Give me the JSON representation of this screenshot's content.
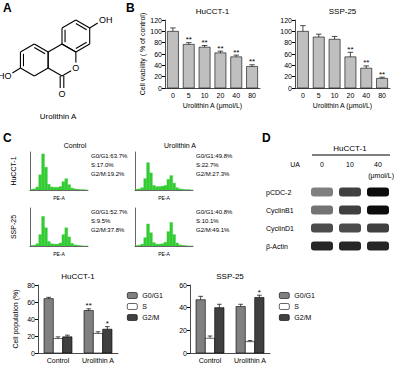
{
  "figure": {
    "panel_letters": [
      "A",
      "B",
      "C",
      "D"
    ],
    "structure": {
      "name": "Urolithin A",
      "atoms": {
        "hydroxyl_top": "OH",
        "hydroxyl_left": "HO",
        "ring_oxygen": "O",
        "carbonyl_oxygen": "O"
      }
    },
    "cell_cycle": {
      "columns": [
        "Control",
        "Urolithin A"
      ],
      "rows": [
        "HuCCT-1",
        "SSP-25"
      ]
    },
    "blot": {
      "cell_line": "HuCCT-1",
      "treatment": "UA",
      "doses": [
        "0",
        "10",
        "40"
      ],
      "unit": "(μmol/L)",
      "rows": [
        {
          "label": "pCDC-2",
          "intensity": [
            0.5,
            0.75,
            0.95
          ]
        },
        {
          "label": "CyclinB1",
          "intensity": [
            0.55,
            0.75,
            0.95
          ]
        },
        {
          "label": "CyclinD1",
          "intensity": [
            0.7,
            0.7,
            0.75
          ]
        },
        {
          "label": "β-Actin",
          "intensity": [
            0.85,
            0.85,
            0.85
          ]
        }
      ]
    }
  },
  "chart_data": [
    {
      "type": "bar",
      "title": "HuCCT-1",
      "categories": [
        "0",
        "5",
        "10",
        "20",
        "40",
        "80"
      ],
      "values": [
        100,
        77,
        72,
        62,
        55,
        38
      ],
      "errors": [
        6,
        3,
        3,
        3,
        3,
        3
      ],
      "significance": [
        null,
        "**",
        "**",
        "**",
        "**",
        "**"
      ],
      "color": "#bfbfbf",
      "x_label": "Urolithin A (μmol/L)",
      "y_label": "Cell viability ( % of control)",
      "ylim": [
        0,
        120
      ],
      "yticks": [
        0,
        20,
        40,
        60,
        80,
        100,
        120
      ]
    },
    {
      "type": "bar",
      "title": "SSP-25",
      "categories": [
        "0",
        "5",
        "10",
        "20",
        "40",
        "80"
      ],
      "values": [
        100,
        90,
        86,
        55,
        35,
        17
      ],
      "errors": [
        10,
        5,
        5,
        8,
        4,
        2
      ],
      "significance": [
        null,
        null,
        null,
        "**",
        "**",
        "**"
      ],
      "color": "#bfbfbf",
      "x_label": "Urolithin A (μmol/L)",
      "ylim": [
        0,
        120
      ],
      "yticks": [
        0,
        20,
        40,
        60,
        80,
        100,
        120
      ]
    },
    {
      "type": "histogram",
      "bins": [
        0,
        1,
        2,
        3,
        4,
        5,
        6,
        7,
        8,
        9,
        10,
        11,
        12,
        13,
        14,
        15,
        16,
        17,
        18,
        19,
        20
      ],
      "counts": [
        2,
        3,
        8,
        40,
        95,
        60,
        15,
        8,
        7,
        7,
        9,
        22,
        30,
        14,
        5,
        3,
        2,
        1,
        1,
        0
      ],
      "color": "#33cc33",
      "x_label": "PE-A",
      "xlim": [
        0,
        20
      ],
      "ylim": [
        0,
        100
      ],
      "tick_labels": false,
      "annotations": [
        "G0/G1:63.7%",
        "S:17.0%",
        "G2/M:19.2%"
      ]
    },
    {
      "type": "histogram",
      "bins": [
        0,
        1,
        2,
        3,
        4,
        5,
        6,
        7,
        8,
        9,
        10,
        11,
        12,
        13,
        14,
        15,
        16,
        17,
        18,
        19,
        20
      ],
      "counts": [
        2,
        3,
        6,
        30,
        72,
        45,
        12,
        9,
        9,
        10,
        12,
        28,
        38,
        18,
        6,
        3,
        2,
        1,
        1,
        0
      ],
      "color": "#33cc33",
      "x_label": "PE-A",
      "xlim": [
        0,
        20
      ],
      "ylim": [
        0,
        100
      ],
      "tick_labels": false,
      "annotations": [
        "G0/G1:49.8%",
        "S:22.7%",
        "G2/M:27.3%"
      ]
    },
    {
      "type": "histogram",
      "bins": [
        0,
        1,
        2,
        3,
        4,
        5,
        6,
        7,
        8,
        9,
        10,
        11,
        12,
        13,
        14,
        15,
        16,
        17,
        18,
        19,
        20
      ],
      "counts": [
        1,
        2,
        6,
        30,
        78,
        48,
        12,
        6,
        5,
        5,
        8,
        30,
        48,
        24,
        7,
        3,
        2,
        1,
        0,
        0
      ],
      "color": "#33cc33",
      "x_label": "PE-A",
      "xlim": [
        0,
        20
      ],
      "ylim": [
        0,
        100
      ],
      "tick_labels": false,
      "annotations": [
        "G0/G1:52.7%",
        "S:9.5%",
        "G2/M:37.8%"
      ]
    },
    {
      "type": "histogram",
      "bins": [
        0,
        1,
        2,
        3,
        4,
        5,
        6,
        7,
        8,
        9,
        10,
        11,
        12,
        13,
        14,
        15,
        16,
        17,
        18,
        19,
        20
      ],
      "counts": [
        1,
        2,
        5,
        22,
        58,
        35,
        9,
        5,
        5,
        6,
        10,
        38,
        62,
        30,
        8,
        3,
        2,
        1,
        0,
        0
      ],
      "color": "#33cc33",
      "x_label": "PE-A",
      "xlim": [
        0,
        20
      ],
      "ylim": [
        0,
        100
      ],
      "tick_labels": false,
      "annotations": [
        "G0/G1:40.8%",
        "S:10.1%",
        "G2/M:49.1%"
      ]
    },
    {
      "type": "bar",
      "title": "HuCCT-1",
      "categories": [
        "Control",
        "Urolithin A"
      ],
      "y_label": "Cell population (%)",
      "ylim": [
        0,
        80
      ],
      "yticks": [
        0,
        20,
        40,
        60,
        80
      ],
      "legend": "right",
      "series": [
        {
          "name": "G0/G1",
          "color": "#808080",
          "values": [
            64,
            50
          ],
          "errors": [
            1.5,
            2
          ],
          "significance": [
            null,
            "**"
          ]
        },
        {
          "name": "S",
          "color": "#ffffff",
          "values": [
            17,
            23
          ],
          "errors": [
            2,
            2
          ],
          "significance": [
            null,
            null
          ]
        },
        {
          "name": "G2/M",
          "color": "#404040",
          "values": [
            19,
            28
          ],
          "errors": [
            2,
            3
          ],
          "significance": [
            null,
            "*"
          ]
        }
      ]
    },
    {
      "type": "bar",
      "title": "SSP-25",
      "categories": [
        "Control",
        "Urolithin A"
      ],
      "ylim": [
        0,
        60
      ],
      "yticks": [
        0,
        20,
        40,
        60
      ],
      "legend": "right",
      "series": [
        {
          "name": "G0/G1",
          "color": "#808080",
          "values": [
            47,
            41
          ],
          "errors": [
            3,
            2
          ],
          "significance": [
            null,
            null
          ]
        },
        {
          "name": "S",
          "color": "#ffffff",
          "values": [
            13,
            10
          ],
          "errors": [
            2,
            1
          ],
          "significance": [
            null,
            null
          ]
        },
        {
          "name": "G2/M",
          "color": "#404040",
          "values": [
            40,
            49
          ],
          "errors": [
            3,
            2
          ],
          "significance": [
            null,
            "*"
          ]
        }
      ]
    }
  ]
}
